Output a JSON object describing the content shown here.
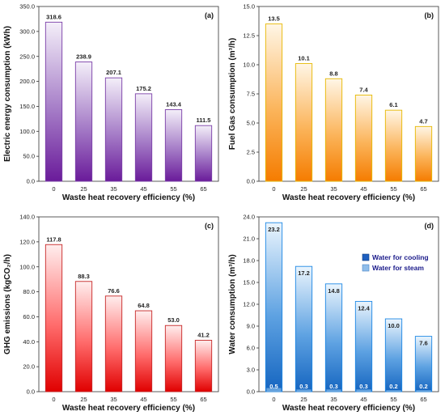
{
  "chart_data": [
    {
      "panel": "(a)",
      "type": "bar",
      "categories": [
        "0",
        "25",
        "35",
        "45",
        "55",
        "65"
      ],
      "values": [
        318.6,
        238.9,
        207.1,
        175.2,
        143.4,
        111.5
      ],
      "value_labels": [
        "318.6",
        "238.9",
        "207.1",
        "175.2",
        "143.4",
        "111.5"
      ],
      "xlabel": "Waste heat recovery efficiency (%)",
      "ylabel": "Electric energy consumption (kWh)",
      "ylim": [
        0,
        350
      ],
      "yticks": [
        "0.0",
        "50.0",
        "100.0",
        "150.0",
        "200.0",
        "250.0",
        "300.0",
        "350.0"
      ],
      "color_top": "#f3eef8",
      "color_bottom": "#6a1b9a",
      "stroke": "#7b3fa8"
    },
    {
      "panel": "(b)",
      "type": "bar",
      "categories": [
        "0",
        "25",
        "35",
        "45",
        "55",
        "65"
      ],
      "values": [
        13.5,
        10.1,
        8.8,
        7.4,
        6.1,
        4.7
      ],
      "value_labels": [
        "13.5",
        "10.1",
        "8.8",
        "7.4",
        "6.1",
        "4.7"
      ],
      "xlabel": "Waste heat recovery efficiency (%)",
      "ylabel": "Fuel Gas consumption (m³/h)",
      "ylim": [
        0,
        15
      ],
      "yticks": [
        "0.0",
        "2.5",
        "5.0",
        "7.5",
        "10.0",
        "12.5",
        "15.0"
      ],
      "color_top": "#fff4e0",
      "color_bottom": "#f57c00",
      "stroke": "#e6b800"
    },
    {
      "panel": "(c)",
      "type": "bar",
      "categories": [
        "0",
        "25",
        "35",
        "45",
        "55",
        "65"
      ],
      "values": [
        117.8,
        88.3,
        76.6,
        64.8,
        53.0,
        41.2
      ],
      "value_labels": [
        "117.8",
        "88.3",
        "76.6",
        "64.8",
        "53.0",
        "41.2"
      ],
      "xlabel": "Waste heat recovery efficiency (%)",
      "ylabel": "GHG emissions (kgCO₂/h)",
      "ylim": [
        0,
        140
      ],
      "yticks": [
        "0.0",
        "20.0",
        "40.0",
        "60.0",
        "80.0",
        "100.0",
        "120.0",
        "140.0"
      ],
      "color_top": "#ffecec",
      "color_bottom": "#e00000",
      "stroke": "#c62828"
    },
    {
      "panel": "(d)",
      "type": "bar",
      "stacked": true,
      "categories": [
        "0",
        "25",
        "35",
        "45",
        "55",
        "65"
      ],
      "series": [
        {
          "name": "Water for cooling",
          "values": [
            23.2,
            17.2,
            14.8,
            12.4,
            10.0,
            7.6
          ],
          "value_labels": [
            "23.2",
            "17.2",
            "14.8",
            "12.4",
            "10.0",
            "7.6"
          ]
        },
        {
          "name": "Water for steam",
          "values": [
            0.5,
            0.3,
            0.3,
            0.3,
            0.2,
            0.2
          ],
          "value_labels": [
            "0.5",
            "0.3",
            "0.3",
            "0.3",
            "0.2",
            "0.2"
          ]
        }
      ],
      "xlabel": "Waste heat recovery efficiency (%)",
      "ylabel": "Water consumption (m³/h)",
      "ylim": [
        0,
        24
      ],
      "yticks": [
        "0.0",
        "3.0",
        "6.0",
        "9.0",
        "12.0",
        "15.0",
        "18.0",
        "21.0",
        "24.0"
      ],
      "color_top": "#eaf4fc",
      "color_bottom": "#1565c0",
      "stroke": "#1e88e5",
      "steam_color": "#6ea8e0",
      "legend_position": "right"
    }
  ]
}
